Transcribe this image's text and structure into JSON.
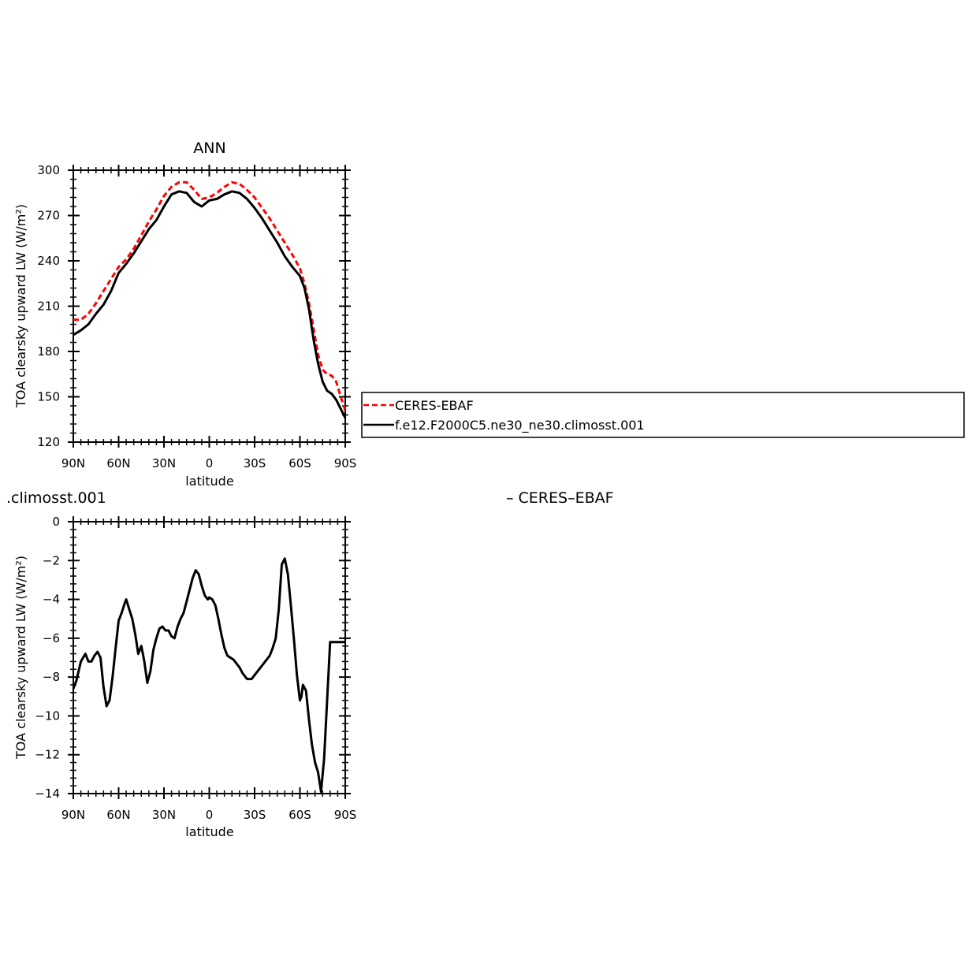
{
  "colors": {
    "obs": "#ff0000",
    "model": "#000000",
    "axis": "#000000"
  },
  "legend": {
    "entries": [
      {
        "name": "CERES-EBAF",
        "color": "#ff0000",
        "dash": true
      },
      {
        "name": "f.e12.F2000C5.ne30_ne30.climosst.001",
        "color": "#000000",
        "dash": false
      }
    ]
  },
  "diff_title_left": ".climosst.001",
  "diff_title_right": "– CERES–EBAF",
  "chart_data": [
    {
      "type": "line",
      "title": "ANN",
      "xlabel": "latitude",
      "ylabel": "TOA clearsky upward LW (W/m²)",
      "xlim": [
        90,
        -90
      ],
      "ylim": [
        120,
        300
      ],
      "yticks": [
        120,
        150,
        180,
        210,
        240,
        270,
        300
      ],
      "xticks": [
        90,
        60,
        30,
        0,
        -30,
        -60,
        -90
      ],
      "xtick_labels": [
        "90N",
        "60N",
        "30N",
        "0",
        "30S",
        "60S",
        "90S"
      ],
      "series": [
        {
          "name": "CERES-EBAF",
          "x": [
            90,
            85,
            80,
            75,
            70,
            65,
            60,
            55,
            50,
            45,
            40,
            35,
            30,
            25,
            20,
            15,
            10,
            5,
            0,
            -5,
            -10,
            -15,
            -20,
            -25,
            -30,
            -35,
            -40,
            -45,
            -50,
            -55,
            -60,
            -63,
            -66,
            -69,
            -72,
            -75,
            -78,
            -81,
            -84,
            -87,
            -90
          ],
          "y": [
            201,
            201,
            205,
            212,
            220,
            228,
            236,
            241,
            248,
            257,
            266,
            274,
            283,
            289,
            292,
            292,
            287,
            281,
            282,
            285,
            289,
            292,
            291,
            287,
            282,
            275,
            268,
            260,
            252,
            244,
            235,
            225,
            212,
            195,
            178,
            168,
            165,
            164,
            160,
            150,
            141
          ]
        },
        {
          "name": "f.e12.F2000C5.ne30_ne30.climosst.001",
          "x": [
            90,
            85,
            80,
            75,
            70,
            65,
            60,
            55,
            50,
            45,
            40,
            35,
            30,
            25,
            20,
            15,
            10,
            5,
            0,
            -5,
            -10,
            -15,
            -20,
            -25,
            -30,
            -35,
            -40,
            -45,
            -50,
            -55,
            -60,
            -63,
            -66,
            -69,
            -72,
            -75,
            -78,
            -81,
            -84,
            -87,
            -90
          ],
          "y": [
            191,
            194,
            198,
            205,
            211,
            220,
            232,
            238,
            245,
            253,
            261,
            267,
            276,
            284,
            286,
            285,
            279,
            276,
            280,
            281,
            284,
            286,
            285,
            281,
            275,
            268,
            260,
            252,
            243,
            236,
            230,
            222,
            208,
            188,
            172,
            160,
            154,
            152,
            148,
            142,
            136
          ]
        }
      ]
    },
    {
      "type": "line",
      "title": "",
      "xlabel": "latitude",
      "ylabel": "TOA clearsky upward LW (W/m²)",
      "xlim": [
        90,
        -90
      ],
      "ylim": [
        -14,
        0
      ],
      "yticks": [
        -14,
        -12,
        -10,
        -8,
        -6,
        -4,
        -2,
        0
      ],
      "xticks": [
        90,
        60,
        30,
        0,
        -30,
        -60,
        -90
      ],
      "xtick_labels": [
        "90N",
        "60N",
        "30N",
        "0",
        "30S",
        "60S",
        "90S"
      ],
      "series": [
        {
          "name": "f.e12.F2000C5.ne30_ne30.climosst.001",
          "x": [
            90,
            88,
            85,
            82,
            80,
            78,
            76,
            74,
            72,
            70,
            68,
            66,
            64,
            62,
            60,
            58,
            56,
            55,
            53,
            51,
            49,
            47,
            45,
            43,
            41,
            39,
            37,
            35,
            33,
            31,
            29,
            27,
            25,
            23,
            21,
            19,
            17,
            15,
            13,
            11,
            9,
            7,
            5,
            3,
            1,
            0,
            -2,
            -4,
            -6,
            -8,
            -10,
            -12,
            -14,
            -16,
            -18,
            -20,
            -22,
            -25,
            -28,
            -31,
            -34,
            -37,
            -40,
            -42,
            -44,
            -46,
            -48,
            -50,
            -52,
            -54,
            -56,
            -58,
            -60,
            -61,
            -62,
            -64,
            -66,
            -68,
            -70,
            -72,
            -74,
            -76,
            -78,
            -80,
            -82,
            -84,
            -86,
            -88,
            -90
          ],
          "y": [
            -8.6,
            -8.2,
            -7.2,
            -6.8,
            -7.2,
            -7.2,
            -6.9,
            -6.7,
            -7.0,
            -8.5,
            -9.5,
            -9.2,
            -8.0,
            -6.5,
            -5.1,
            -4.7,
            -4.2,
            -4.0,
            -4.5,
            -5.0,
            -5.8,
            -6.8,
            -6.4,
            -7.2,
            -8.3,
            -7.7,
            -6.6,
            -6.0,
            -5.5,
            -5.4,
            -5.6,
            -5.6,
            -5.9,
            -6.0,
            -5.4,
            -5.0,
            -4.7,
            -4.1,
            -3.5,
            -2.9,
            -2.5,
            -2.7,
            -3.3,
            -3.8,
            -4.0,
            -3.9,
            -4.0,
            -4.3,
            -5.0,
            -5.8,
            -6.5,
            -6.9,
            -7.0,
            -7.1,
            -7.3,
            -7.5,
            -7.8,
            -8.1,
            -8.1,
            -7.8,
            -7.5,
            -7.2,
            -6.9,
            -6.5,
            -6.0,
            -4.5,
            -2.2,
            -1.9,
            -2.7,
            -4.3,
            -6.0,
            -7.9,
            -9.2,
            -9.0,
            -8.4,
            -8.7,
            -10.2,
            -11.5,
            -12.4,
            -12.9,
            -13.9,
            -12.2,
            -9.2,
            -6.2,
            -6.2,
            -6.2,
            -6.2,
            -6.2,
            -6.2
          ]
        }
      ]
    }
  ]
}
